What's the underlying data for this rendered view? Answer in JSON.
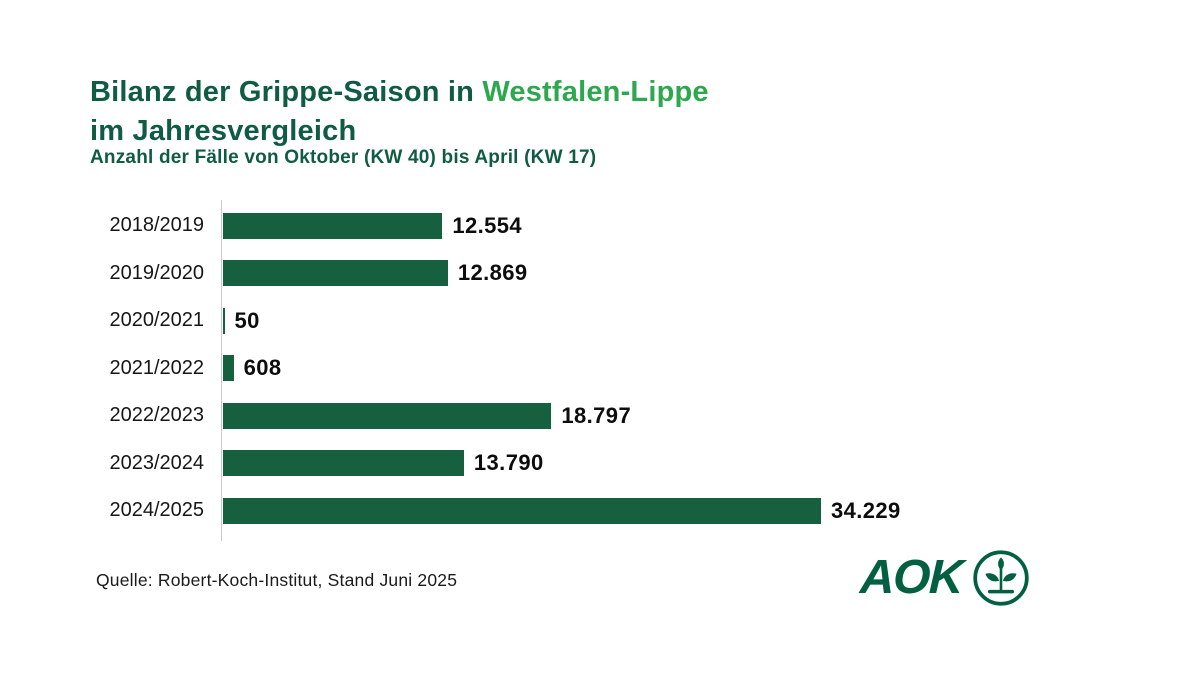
{
  "title": {
    "line1_dark": "Bilanz der Grippe-Saison in ",
    "line1_accent": "Westfalen-Lippe",
    "line2": "im Jahresvergleich"
  },
  "subtitle": "Anzahl der Fälle von Oktober (KW 40) bis April (KW 17)",
  "chart_data": {
    "type": "bar",
    "orientation": "horizontal",
    "title": "Bilanz der Grippe-Saison in Westfalen-Lippe im Jahresvergleich",
    "subtitle": "Anzahl der Fälle von Oktober (KW 40) bis April (KW 17)",
    "categories": [
      "2018/2019",
      "2019/2020",
      "2020/2021",
      "2021/2022",
      "2022/2023",
      "2023/2024",
      "2024/2025"
    ],
    "values": [
      12554,
      12869,
      50,
      608,
      18797,
      13790,
      34229
    ],
    "value_labels": [
      "12.554",
      "12.869",
      "50",
      "608",
      "18.797",
      "13.790",
      "34.229"
    ],
    "xlabel": "",
    "ylabel": "",
    "xlim": [
      0,
      34229
    ],
    "grid": false,
    "legend": false,
    "bar_color": "#17603F"
  },
  "footer": {
    "source": "Quelle: Robert-Koch-Institut, Stand Juni 2025"
  },
  "logo": {
    "text": "AOK",
    "symbol": "aok-tree-of-life-icon"
  },
  "colors": {
    "dark_green": "#0F5C42",
    "accent_green": "#2EA84E",
    "bar_green": "#17603F",
    "logo_green": "#00603F",
    "axis_gray": "#C9C9C9",
    "background": "#FFFFFF"
  }
}
